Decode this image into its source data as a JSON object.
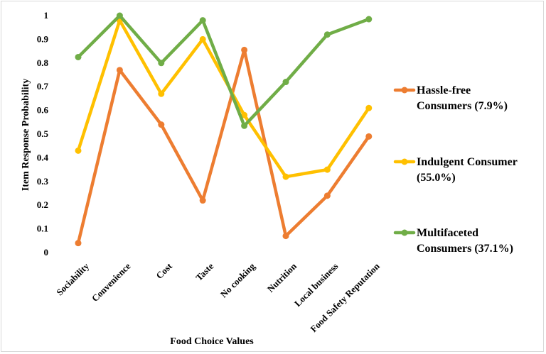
{
  "chart_data": {
    "type": "line",
    "categories": [
      "Sociability",
      "Convenience",
      "Cost",
      "Taste",
      "No cooking",
      "Nutrition",
      "Local business",
      "Food Safety Reputation"
    ],
    "series": [
      {
        "name_lines": [
          "Hassle-free",
          "Consumers (7.9%)"
        ],
        "color": "#ED7D31",
        "values": [
          0.04,
          0.77,
          0.54,
          0.22,
          0.855,
          0.07,
          0.24,
          0.49
        ]
      },
      {
        "name_lines": [
          "Indulgent Consumer",
          "(55.0%)"
        ],
        "color": "#FFC000",
        "values": [
          0.43,
          0.98,
          0.67,
          0.9,
          0.58,
          0.32,
          0.35,
          0.61
        ]
      },
      {
        "name_lines": [
          "Multifaceted",
          "Consumers (37.1%)"
        ],
        "color": "#70AD47",
        "values": [
          0.825,
          1.0,
          0.8,
          0.98,
          0.535,
          0.72,
          0.92,
          0.985
        ]
      }
    ],
    "ylim": [
      0,
      1
    ],
    "yticks": [
      "0",
      "0.1",
      "0.2",
      "0.3",
      "0.4",
      "0.5",
      "0.6",
      "0.7",
      "0.8",
      "0.9",
      "1"
    ],
    "xlabel": "Food Choice Values",
    "ylabel": "Item Response Probability",
    "grid": false,
    "legend_position": "right"
  }
}
